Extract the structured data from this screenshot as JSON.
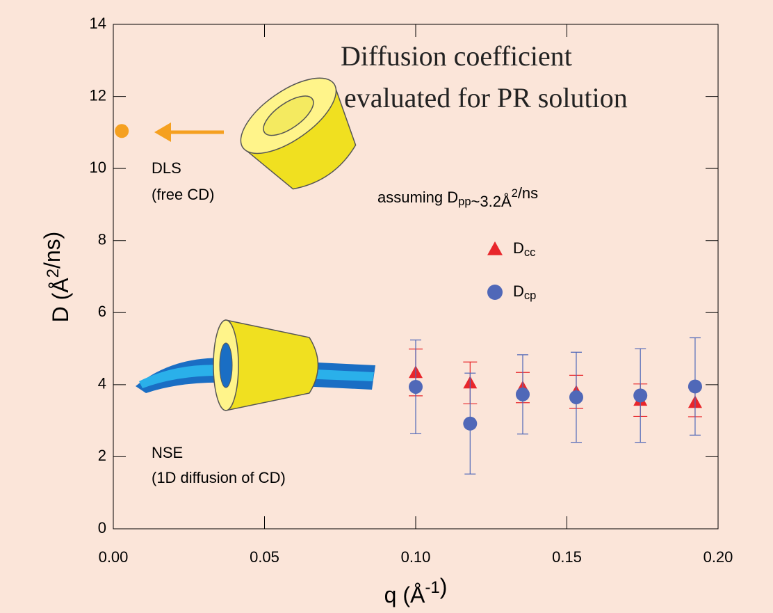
{
  "chart_data": {
    "type": "scatter",
    "title_lines": [
      "Diffusion coefficient",
      "evaluated for PR solution"
    ],
    "x_label": "q (Å-1)",
    "y_label": "D (Å2/ns)",
    "annotations": [
      "DLS",
      "(free CD)",
      "NSE",
      "(1D diffusion of CD)",
      "assuming Dpp~3.2Å2/ns"
    ],
    "xlim": [
      0,
      0.2
    ],
    "xticks": [
      {
        "value": 0,
        "label": "0.00"
      },
      {
        "value": 0.05,
        "label": "0.05"
      },
      {
        "value": 0.1,
        "label": "0.10"
      },
      {
        "value": 0.15,
        "label": "0.15"
      },
      {
        "value": 0.2,
        "label": "0.20"
      }
    ],
    "ylim": [
      0,
      14
    ],
    "yticks": [
      0,
      2,
      4,
      6,
      8,
      10,
      12,
      14
    ],
    "series": [
      {
        "name": "Dcc",
        "color": "#e8262b",
        "marker": "triangle",
        "x": [
          0.1,
          0.118,
          0.1354,
          0.1531,
          0.1743,
          0.1924
        ],
        "values": [
          4.34,
          4.05,
          3.92,
          3.8,
          3.57,
          3.51
        ],
        "errors": [
          0.65,
          0.58,
          0.42,
          0.46,
          0.45,
          0.4
        ]
      },
      {
        "name": "Dcp",
        "color": "#5068b8",
        "marker": "circle",
        "x": [
          0.1,
          0.118,
          0.1354,
          0.1531,
          0.1743,
          0.1924
        ],
        "values": [
          3.94,
          2.92,
          3.73,
          3.65,
          3.7,
          3.95
        ],
        "errors": [
          1.3,
          1.4,
          1.1,
          1.25,
          1.3,
          1.35
        ]
      },
      {
        "color": "#f5a020",
        "marker": "circle",
        "x": [
          0.0028
        ],
        "values": [
          11.04
        ]
      }
    ]
  }
}
